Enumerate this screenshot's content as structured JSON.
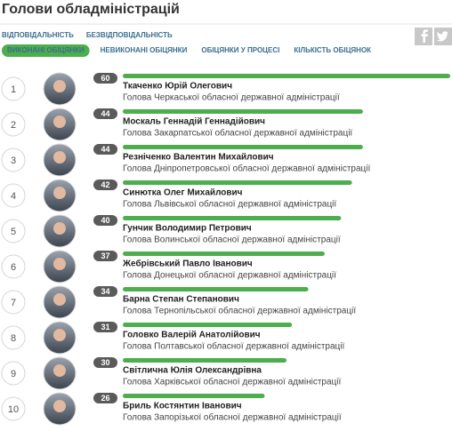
{
  "header": {
    "title": "Голови обладміністрацій"
  },
  "tabs": {
    "row1": [
      "ВІДПОВІДАЛЬНІСТЬ",
      "БЕЗВІДПОВІДАЛЬНІСТЬ"
    ],
    "row2": [
      "ВИКОНАНІ ОБІЦЯНКИ",
      "НЕВИКОНАНІ ОБІЦЯНКИ",
      "ОБІЦЯНКИ У ПРОЦЕСІ",
      "КІЛЬКІСТЬ ОБІЦЯНОК"
    ]
  },
  "list": {
    "bar_color": "#4cae4c",
    "items": [
      {
        "rank": 1,
        "value": 60,
        "name": "Ткаченко Юрій Олегович",
        "position": "Голова Черкаської обласної державної адміністрації"
      },
      {
        "rank": 2,
        "value": 44,
        "name": "Москаль Геннадій Геннадійович",
        "position": "Голова Закарпатської обласної державної адміністрації"
      },
      {
        "rank": 3,
        "value": 44,
        "name": "Резніченко Валентин Михайлович",
        "position": "Голова Дніпропетровської обласної державної адміністрації"
      },
      {
        "rank": 4,
        "value": 42,
        "name": "Синютка Олег Михайлович",
        "position": "Голова Львівської обласної державної адміністрації"
      },
      {
        "rank": 5,
        "value": 40,
        "name": "Гунчик Володимир Петрович",
        "position": "Голова Волинської обласної державної адміністрації"
      },
      {
        "rank": 6,
        "value": 37,
        "name": "Жебрівський Павло Іванович",
        "position": "Голова Донецької обласної державної адміністрації"
      },
      {
        "rank": 7,
        "value": 34,
        "name": "Барна Степан Степанович",
        "position": "Голова Тернопільської обласної державної адміністрації"
      },
      {
        "rank": 8,
        "value": 31,
        "name": "Головко Валерій Анатолійович",
        "position": "Голова Полтавської обласної державної адміністрації"
      },
      {
        "rank": 9,
        "value": 30,
        "name": "Світлична Юлія Олександрівна",
        "position": "Голова Харківської обласної державної адміністрації"
      },
      {
        "rank": 10,
        "value": 26,
        "name": "Бриль Костянтин Іванович",
        "position": "Голова Запорізької обласної державної адміністрації"
      }
    ]
  }
}
